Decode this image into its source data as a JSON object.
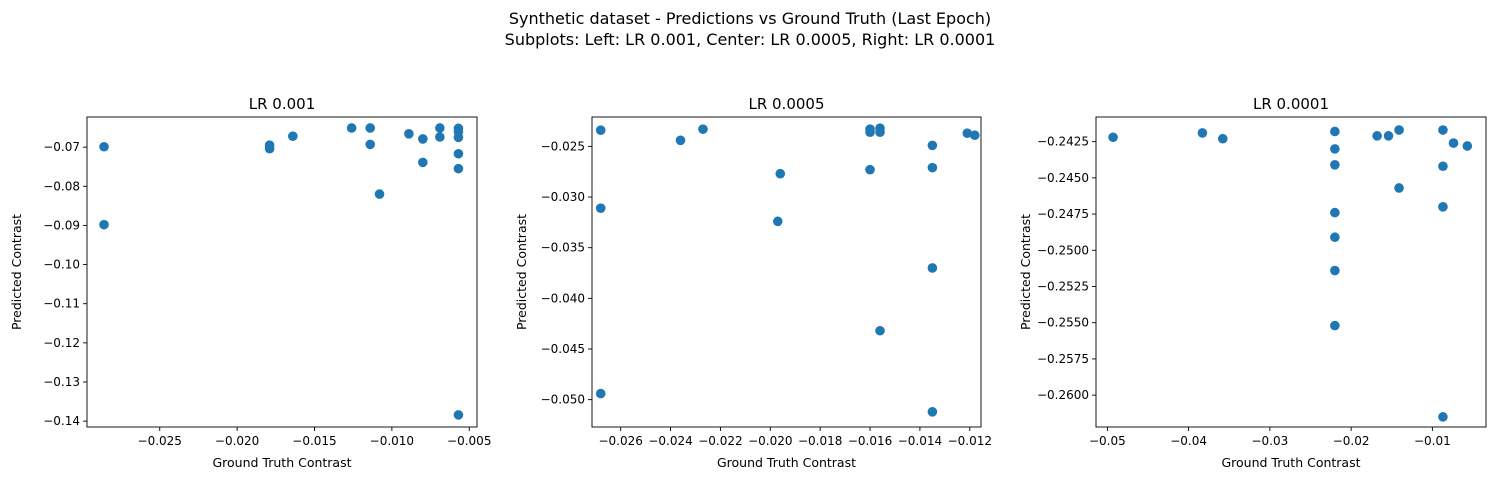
{
  "figure": {
    "suptitle_line1": "Synthetic dataset - Predictions vs Ground Truth (Last Epoch)",
    "suptitle_line2": "Subplots: Left: LR 0.001, Center: LR 0.0005, Right: LR 0.0001"
  },
  "colors": {
    "marker": "#1f77b4",
    "axes": "#000000"
  },
  "chart_data": [
    {
      "type": "scatter",
      "title": "LR 0.001",
      "xlabel": "Ground Truth Contrast",
      "ylabel": "Predicted Contrast",
      "xlim": [
        -0.0297,
        -0.0045
      ],
      "ylim": [
        -0.1415,
        -0.0623
      ],
      "xticks": [
        -0.025,
        -0.02,
        -0.015,
        -0.01,
        -0.005
      ],
      "xtick_labels": [
        "−0.025",
        "−0.020",
        "−0.015",
        "−0.010",
        "−0.005"
      ],
      "yticks": [
        -0.14,
        -0.13,
        -0.12,
        -0.11,
        -0.1,
        -0.09,
        -0.08,
        -0.07
      ],
      "ytick_labels": [
        "−0.14",
        "−0.13",
        "−0.12",
        "−0.11",
        "−0.10",
        "−0.09",
        "−0.08",
        "−0.07"
      ],
      "points": [
        [
          -0.0286,
          -0.0699
        ],
        [
          -0.0286,
          -0.0898
        ],
        [
          -0.0179,
          -0.0695
        ],
        [
          -0.0179,
          -0.0704
        ],
        [
          -0.0164,
          -0.0672
        ],
        [
          -0.0126,
          -0.0651
        ],
        [
          -0.0114,
          -0.0651
        ],
        [
          -0.0114,
          -0.0693
        ],
        [
          -0.0108,
          -0.082
        ],
        [
          -0.0089,
          -0.0666
        ],
        [
          -0.008,
          -0.0679
        ],
        [
          -0.008,
          -0.0739
        ],
        [
          -0.0069,
          -0.0651
        ],
        [
          -0.0069,
          -0.0674
        ],
        [
          -0.0057,
          -0.0652
        ],
        [
          -0.0057,
          -0.0661
        ],
        [
          -0.0057,
          -0.0675
        ],
        [
          -0.0057,
          -0.0717
        ],
        [
          -0.0057,
          -0.0755
        ],
        [
          -0.0057,
          -0.1384
        ]
      ]
    },
    {
      "type": "scatter",
      "title": "LR 0.0005",
      "xlabel": "Ground Truth Contrast",
      "ylabel": "Predicted Contrast",
      "xlim": [
        -0.02715,
        -0.01155
      ],
      "ylim": [
        -0.0527,
        -0.0221
      ],
      "xticks": [
        -0.026,
        -0.024,
        -0.022,
        -0.02,
        -0.018,
        -0.016,
        -0.014,
        -0.012
      ],
      "xtick_labels": [
        "−0.026",
        "−0.024",
        "−0.022",
        "−0.020",
        "−0.018",
        "−0.016",
        "−0.014",
        "−0.012"
      ],
      "yticks": [
        -0.05,
        -0.045,
        -0.04,
        -0.035,
        -0.03,
        -0.025
      ],
      "ytick_labels": [
        "−0.050",
        "−0.045",
        "−0.040",
        "−0.035",
        "−0.030",
        "−0.025"
      ],
      "points": [
        [
          -0.0268,
          -0.0234
        ],
        [
          -0.0268,
          -0.0311
        ],
        [
          -0.0268,
          -0.0494
        ],
        [
          -0.0236,
          -0.0244
        ],
        [
          -0.0227,
          -0.0233
        ],
        [
          -0.0197,
          -0.0324
        ],
        [
          -0.0196,
          -0.0277
        ],
        [
          -0.016,
          -0.0233
        ],
        [
          -0.016,
          -0.0236
        ],
        [
          -0.016,
          -0.0273
        ],
        [
          -0.0156,
          -0.0232
        ],
        [
          -0.0156,
          -0.0236
        ],
        [
          -0.0156,
          -0.0432
        ],
        [
          -0.0135,
          -0.0249
        ],
        [
          -0.0135,
          -0.0271
        ],
        [
          -0.0135,
          -0.037
        ],
        [
          -0.0135,
          -0.0512
        ],
        [
          -0.0121,
          -0.0237
        ],
        [
          -0.0118,
          -0.0239
        ]
      ]
    },
    {
      "type": "scatter",
      "title": "LR 0.0001",
      "xlabel": "Ground Truth Contrast",
      "ylabel": "Predicted Contrast",
      "xlim": [
        -0.0514,
        -0.0034
      ],
      "ylim": [
        -0.2622,
        -0.2408
      ],
      "xticks": [
        -0.05,
        -0.04,
        -0.03,
        -0.02,
        -0.01
      ],
      "xtick_labels": [
        "−0.05",
        "−0.04",
        "−0.03",
        "−0.02",
        "−0.01"
      ],
      "yticks": [
        -0.26,
        -0.2575,
        -0.255,
        -0.2525,
        -0.25,
        -0.2475,
        -0.245,
        -0.2425
      ],
      "ytick_labels": [
        "−0.2600",
        "−0.2575",
        "−0.2550",
        "−0.2525",
        "−0.2500",
        "−0.2475",
        "−0.2450",
        "−0.2425"
      ],
      "points": [
        [
          -0.0493,
          -0.2422
        ],
        [
          -0.0383,
          -0.2419
        ],
        [
          -0.0358,
          -0.2423
        ],
        [
          -0.022,
          -0.2418
        ],
        [
          -0.022,
          -0.243
        ],
        [
          -0.022,
          -0.2441
        ],
        [
          -0.022,
          -0.2474
        ],
        [
          -0.022,
          -0.2491
        ],
        [
          -0.022,
          -0.2514
        ],
        [
          -0.022,
          -0.2552
        ],
        [
          -0.0168,
          -0.2421
        ],
        [
          -0.0154,
          -0.2421
        ],
        [
          -0.0141,
          -0.2417
        ],
        [
          -0.0141,
          -0.2457
        ],
        [
          -0.0087,
          -0.2417
        ],
        [
          -0.0087,
          -0.2442
        ],
        [
          -0.0087,
          -0.247
        ],
        [
          -0.0087,
          -0.2615
        ],
        [
          -0.0074,
          -0.2426
        ],
        [
          -0.0057,
          -0.2428
        ]
      ]
    }
  ]
}
